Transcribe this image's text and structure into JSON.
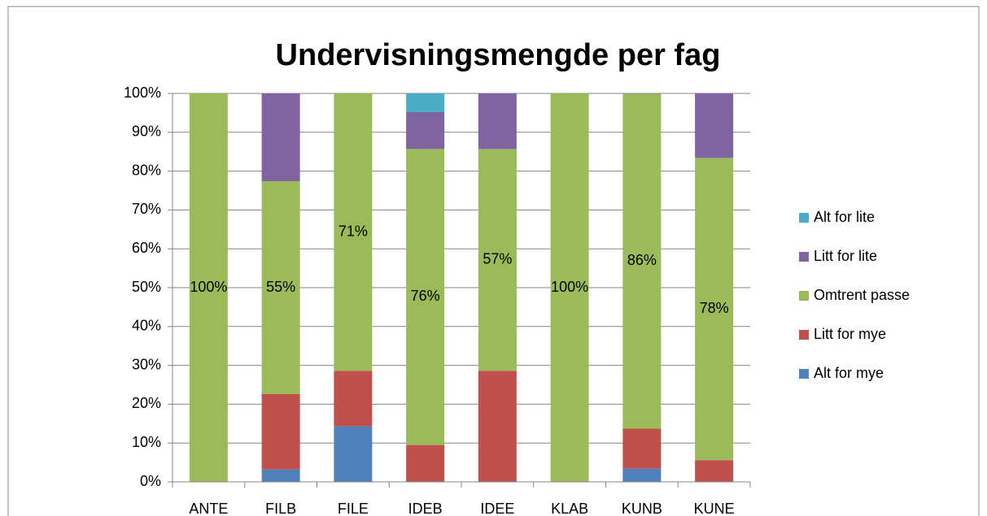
{
  "chart_data": {
    "type": "stacked_bar",
    "title": "Undervisningsmengde per fag",
    "categories": [
      "ANTE",
      "FILB",
      "FILE",
      "IDEB",
      "IDEE",
      "KLAB",
      "KUNB",
      "KUNE"
    ],
    "series": [
      {
        "name": "Alt for mye",
        "color": "#4f81bd",
        "values": [
          0,
          3.2,
          14.3,
          0,
          0,
          0,
          3.4,
          0
        ]
      },
      {
        "name": "Litt for mye",
        "color": "#c0504d",
        "values": [
          0,
          19.4,
          14.3,
          9.5,
          28.6,
          0,
          10.3,
          5.6
        ]
      },
      {
        "name": "Omtrent passe",
        "color": "#9bbb59",
        "values": [
          100,
          54.8,
          71.4,
          76.2,
          57.1,
          100,
          86.2,
          77.8
        ],
        "value_labels": [
          "100%",
          "55%",
          "71%",
          "76%",
          "57%",
          "100%",
          "86%",
          "78%"
        ]
      },
      {
        "name": "Litt for lite",
        "color": "#8064a2",
        "values": [
          0,
          22.6,
          0,
          9.5,
          14.3,
          0,
          0,
          16.7
        ]
      },
      {
        "name": "Alt for lite",
        "color": "#4bacc6",
        "values": [
          0,
          0,
          0,
          4.8,
          0,
          0,
          0,
          0
        ]
      }
    ],
    "ylim": [
      0,
      100
    ],
    "yticks": [
      {
        "value": 0,
        "label": "0%"
      },
      {
        "value": 10,
        "label": "10%"
      },
      {
        "value": 20,
        "label": "20%"
      },
      {
        "value": 30,
        "label": "30%"
      },
      {
        "value": 40,
        "label": "40%"
      },
      {
        "value": 50,
        "label": "50%"
      },
      {
        "value": 60,
        "label": "60%"
      },
      {
        "value": 70,
        "label": "70%"
      },
      {
        "value": 80,
        "label": "80%"
      },
      {
        "value": 90,
        "label": "90%"
      },
      {
        "value": 100,
        "label": "100%"
      }
    ],
    "grid": true,
    "legend": "right"
  }
}
